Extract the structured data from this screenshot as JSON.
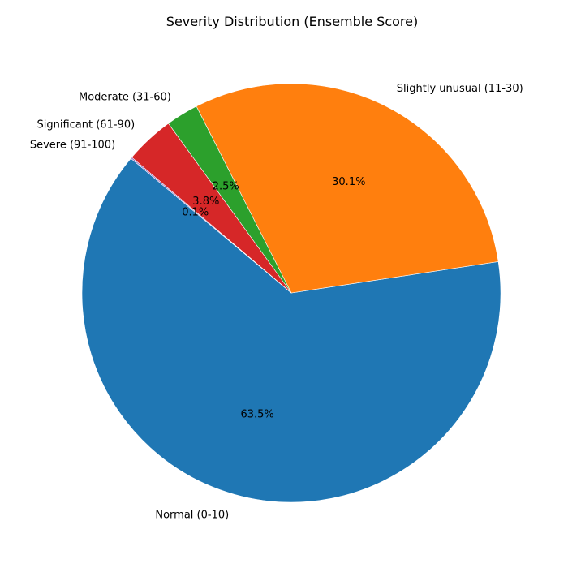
{
  "chart_data": {
    "type": "pie",
    "title": "Severity Distribution (Ensemble Score)",
    "categories": [
      "Normal (0-10)",
      "Slightly unusual (11-30)",
      "Moderate (31-60)",
      "Significant (61-90)",
      "Severe (91-100)"
    ],
    "values": [
      63.5,
      30.1,
      2.5,
      3.8,
      0.1
    ],
    "value_labels": [
      "63.5%",
      "30.1%",
      "2.5%",
      "3.8%",
      "0.1%"
    ],
    "colors": [
      "#1f77b4",
      "#ff7f0e",
      "#2ca02c",
      "#d62728",
      "#9467bd"
    ],
    "legend": "none"
  }
}
